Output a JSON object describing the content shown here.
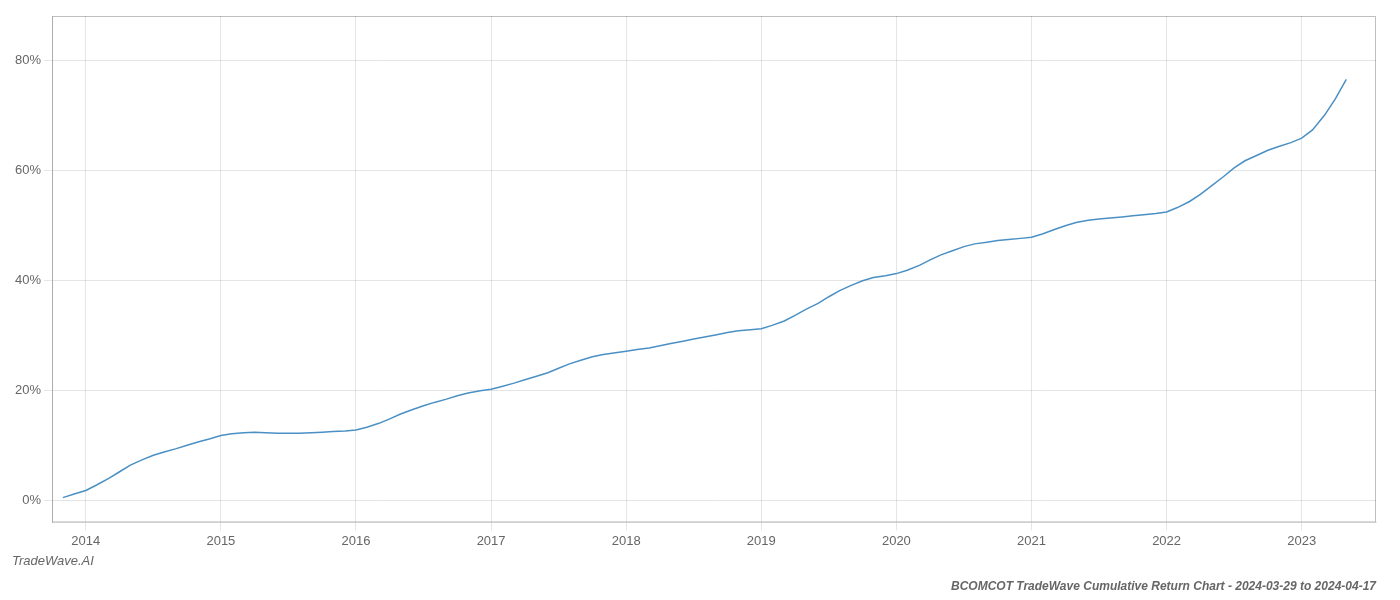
{
  "chart_data": {
    "type": "line",
    "title": "BCOMCOT TradeWave Cumulative Return Chart - 2024-03-29 to 2024-04-17",
    "subtitle": "TradeWave.AI",
    "color": "#4a90c4",
    "grid": true,
    "xlim": [
      2013.75,
      2023.55
    ],
    "ylim": [
      -0.04,
      0.88
    ],
    "xticks": [
      2014,
      2015,
      2016,
      2017,
      2018,
      2019,
      2020,
      2021,
      2022,
      2023
    ],
    "yticks": [
      {
        "value": 0,
        "label": "0%"
      },
      {
        "value": 0.2,
        "label": "20%"
      },
      {
        "value": 0.4,
        "label": "40%"
      },
      {
        "value": 0.6,
        "label": "60%"
      },
      {
        "value": 0.8,
        "label": "80%"
      }
    ],
    "x": [
      2013.83,
      2013.92,
      2014.0,
      2014.08,
      2014.17,
      2014.25,
      2014.33,
      2014.42,
      2014.5,
      2014.58,
      2014.67,
      2014.75,
      2014.83,
      2014.92,
      2015.0,
      2015.08,
      2015.17,
      2015.25,
      2015.33,
      2015.42,
      2015.5,
      2015.58,
      2015.67,
      2015.75,
      2015.83,
      2015.92,
      2016.0,
      2016.08,
      2016.17,
      2016.25,
      2016.33,
      2016.42,
      2016.5,
      2016.58,
      2016.67,
      2016.75,
      2016.83,
      2016.92,
      2017.0,
      2017.08,
      2017.17,
      2017.25,
      2017.33,
      2017.42,
      2017.5,
      2017.58,
      2017.67,
      2017.75,
      2017.83,
      2017.92,
      2018.0,
      2018.08,
      2018.17,
      2018.25,
      2018.33,
      2018.42,
      2018.5,
      2018.58,
      2018.67,
      2018.75,
      2018.83,
      2018.92,
      2019.0,
      2019.08,
      2019.17,
      2019.25,
      2019.33,
      2019.42,
      2019.5,
      2019.58,
      2019.67,
      2019.75,
      2019.83,
      2019.92,
      2020.0,
      2020.08,
      2020.17,
      2020.25,
      2020.33,
      2020.42,
      2020.5,
      2020.58,
      2020.67,
      2020.75,
      2020.83,
      2020.92,
      2021.0,
      2021.08,
      2021.17,
      2021.25,
      2021.33,
      2021.42,
      2021.5,
      2021.58,
      2021.67,
      2021.75,
      2021.83,
      2021.92,
      2022.0,
      2022.08,
      2022.17,
      2022.25,
      2022.33,
      2022.42,
      2022.5,
      2022.58,
      2022.67,
      2022.75,
      2022.83,
      2022.92,
      2023.0,
      2023.08,
      2023.17,
      2023.25,
      2023.33
    ],
    "values": [
      0.005,
      0.012,
      0.018,
      0.028,
      0.04,
      0.052,
      0.064,
      0.074,
      0.082,
      0.088,
      0.094,
      0.1,
      0.106,
      0.112,
      0.118,
      0.121,
      0.123,
      0.124,
      0.123,
      0.122,
      0.122,
      0.122,
      0.123,
      0.124,
      0.125,
      0.126,
      0.128,
      0.133,
      0.14,
      0.148,
      0.157,
      0.165,
      0.172,
      0.178,
      0.184,
      0.19,
      0.195,
      0.199,
      0.202,
      0.207,
      0.213,
      0.219,
      0.225,
      0.232,
      0.24,
      0.248,
      0.255,
      0.261,
      0.265,
      0.268,
      0.271,
      0.274,
      0.277,
      0.281,
      0.285,
      0.289,
      0.293,
      0.297,
      0.301,
      0.305,
      0.308,
      0.31,
      0.312,
      0.318,
      0.326,
      0.336,
      0.347,
      0.358,
      0.37,
      0.381,
      0.391,
      0.399,
      0.405,
      0.408,
      0.412,
      0.418,
      0.427,
      0.437,
      0.446,
      0.454,
      0.461,
      0.466,
      0.469,
      0.472,
      0.474,
      0.476,
      0.478,
      0.484,
      0.492,
      0.499,
      0.505,
      0.509,
      0.511,
      0.513,
      0.515,
      0.517,
      0.519,
      0.521,
      0.524,
      0.532,
      0.543,
      0.556,
      0.571,
      0.588,
      0.604,
      0.617,
      0.627,
      0.636,
      0.643,
      0.65,
      0.658,
      0.673,
      0.7,
      0.73,
      0.765
    ]
  }
}
